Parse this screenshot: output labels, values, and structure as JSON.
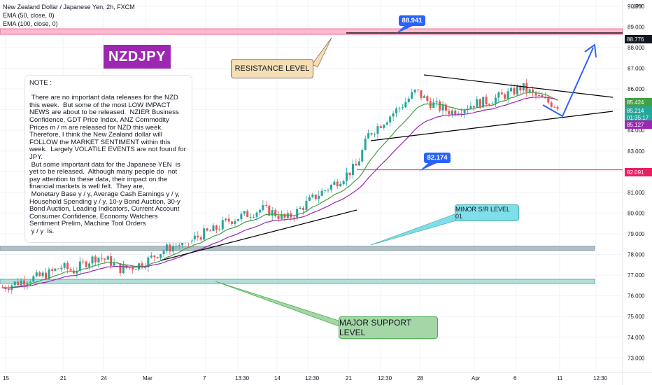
{
  "legend": {
    "symbol": "New Zealand Dollar / Japanese Yen, 2h, FXCM",
    "ema50": "EMA (50, close, 0)",
    "ema100": "EMA (100, close, 0)"
  },
  "badge": "NZDJPY",
  "note_text": "NOTE :\n\n There are no important data releases for the NZD this week.  But some of the most LOW IMPACT NEWS are about to be released.  NZIER Business Confidence, GDT Price Index, ANZ Commodity Prices m / m are released for NZD this week.  Therefore, I think the New Zealand dollar will FOLLOW the MARKET SENTIMENT within this week.  Largely VOLATILE EVENTS are not found for JPY.\n But some important data for the Japanese YEN  is yet to be released.  Although many people do  not pay attention to these data, their impact on the financial markets is well felt.  They are,\n Monetary Base y / y, Average Cash Earnings y / y, Household Spending y / y, 10-y Bond Auction, 30-y Bond Auction, Leading Indicators, Current Account Consumer Confidence, Economy Watchers Sentiment Prelim, Machine Tool Orders\n y / y  ls.",
  "callouts": {
    "resistance": "RESISTANCE LEVEL",
    "minor": "MINOR S/R LEVEL 01",
    "major": "MAJOR SUPPORT LEVEL"
  },
  "price_tags": {
    "top": "88.941",
    "mid": "82.174"
  },
  "axis": {
    "currency": "JPY",
    "right_tags": {
      "resistance": "88.776",
      "ema50": "85.424",
      "last": "85.214",
      "countdown": "01:35:17",
      "ema100": "85.127",
      "mid": "82.091"
    }
  },
  "colors": {
    "bull": "#26a69a",
    "bear": "#ef5350",
    "ema50": "#43a047",
    "ema100": "#9c27b0",
    "resistance_zone": "#f8bbd0",
    "support_zone": "#b2dfdb",
    "minor_zone": "#b0bec5",
    "blue": "#2962ff"
  },
  "chart_data": {
    "type": "candlestick",
    "title": "New Zealand Dollar / Japanese Yen, 2h, FXCM",
    "ylim": [
      72.3,
      90.3
    ],
    "y_ticks": [
      73.0,
      74.0,
      75.0,
      76.0,
      77.0,
      78.0,
      79.0,
      80.0,
      81.0,
      82.0,
      83.0,
      84.0,
      85.0,
      86.0,
      87.0,
      88.0,
      89.0,
      90.0
    ],
    "x_ticks": [
      "15",
      "21",
      "24",
      "Mar",
      "7",
      "13:30",
      "14",
      "12:30",
      "21",
      "12:30",
      "28",
      "Apr",
      "6",
      "11",
      "12:30"
    ],
    "series": [
      {
        "name": "EMA (50, close, 0)",
        "last": 85.424
      },
      {
        "name": "EMA (100, close, 0)",
        "last": 85.127
      }
    ],
    "close_path": [
      76.4,
      76.6,
      76.8,
      76.9,
      77.1,
      77.4,
      77.2,
      77.6,
      77.9,
      77.7,
      77.3,
      77.4,
      77.6,
      78.0,
      78.3,
      78.5,
      78.7,
      79.0,
      79.2,
      79.6,
      79.8,
      80.0,
      80.2,
      80.0,
      79.7,
      80.1,
      80.6,
      81.0,
      81.4,
      81.8,
      82.3,
      83.8,
      84.3,
      84.8,
      85.3,
      85.9,
      85.4,
      85.1,
      84.9,
      85.1,
      85.3,
      85.4,
      85.6,
      85.8,
      86.1,
      85.7,
      85.4,
      85.214
    ],
    "levels": {
      "resistance": 88.776,
      "resistance_label": 88.941,
      "mid": 82.174,
      "mid_axis": 82.091,
      "minor_support": 78.3,
      "major_support": 76.7
    },
    "grid": true
  }
}
